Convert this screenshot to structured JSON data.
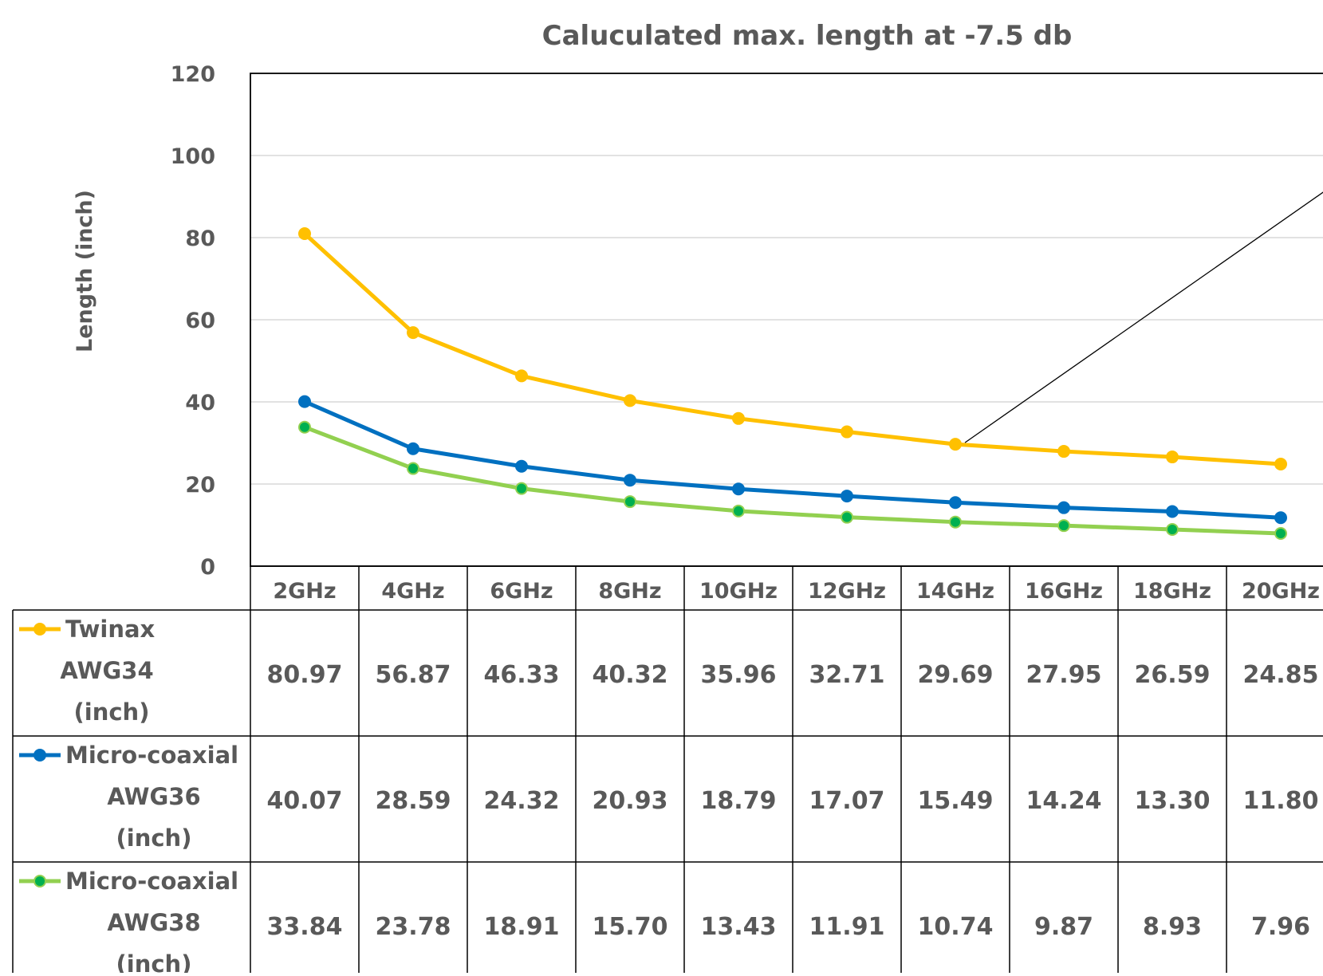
{
  "chart_data": {
    "type": "line",
    "title": "Caluculated max. length at -7.5 db",
    "ylabel": "Length (inch)",
    "ylim": [
      0,
      120
    ],
    "yticks": [
      0,
      20,
      40,
      60,
      80,
      100,
      120
    ],
    "grid": true,
    "legend": "data-table",
    "categories": [
      "2GHz",
      "4GHz",
      "6GHz",
      "8GHz",
      "10GHz",
      "12GHz",
      "14GHz",
      "16GHz",
      "18GHz",
      "20GHz"
    ],
    "series": [
      {
        "name": "Twinax AWG34 (inch)",
        "label_lines": [
          "Twinax",
          "AWG34",
          "(inch)"
        ],
        "color": "#FFC000",
        "marker_color": "#FFC000",
        "values": [
          80.97,
          56.87,
          46.33,
          40.32,
          35.96,
          32.71,
          29.69,
          27.95,
          26.59,
          24.85
        ],
        "display_values": [
          "80.97",
          "56.87",
          "46.33",
          "40.32",
          "35.96",
          "32.71",
          "29.69",
          "27.95",
          "26.59",
          "24.85"
        ]
      },
      {
        "name": "Micro-coaxial AWG36 (inch)",
        "label_lines": [
          "Micro-coaxial",
          "AWG36",
          "(inch)"
        ],
        "color": "#0070C0",
        "marker_color": "#0070C0",
        "values": [
          40.07,
          28.59,
          24.32,
          20.93,
          18.79,
          17.07,
          15.49,
          14.24,
          13.3,
          11.8
        ],
        "display_values": [
          "40.07",
          "28.59",
          "24.32",
          "20.93",
          "18.79",
          "17.07",
          "15.49",
          "14.24",
          "13.30",
          "11.80"
        ]
      },
      {
        "name": "Micro-coaxial AWG38 (inch)",
        "label_lines": [
          "Micro-coaxial",
          "AWG38",
          "(inch)"
        ],
        "color": "#92D050",
        "marker_color": "#00B050",
        "values": [
          33.84,
          23.78,
          18.91,
          15.7,
          13.43,
          11.91,
          10.74,
          9.87,
          8.93,
          7.96
        ],
        "display_values": [
          "33.84",
          "23.78",
          "18.91",
          "15.70",
          "13.43",
          "11.91",
          "10.74",
          "9.87",
          "8.93",
          "7.96"
        ]
      }
    ],
    "annotation": {
      "type": "leader-line",
      "from_category": "14GHz",
      "from_value": 29.69,
      "to": "off-chart-right"
    }
  },
  "colors": {
    "text": "#595959",
    "gridline": "#D9D9D9",
    "frame": "#000000"
  }
}
